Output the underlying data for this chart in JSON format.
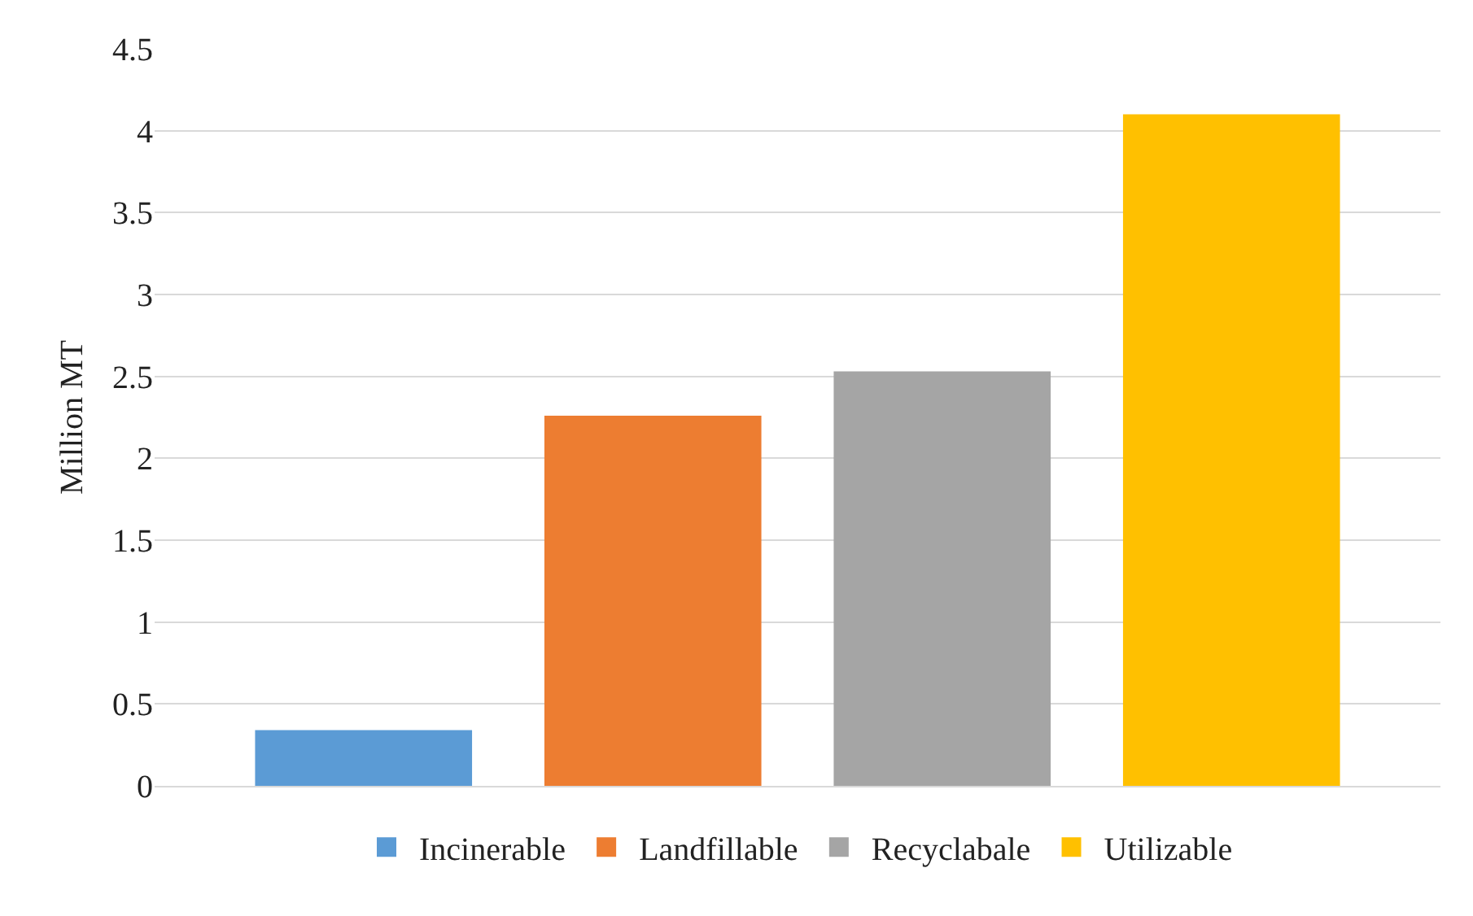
{
  "chart_data": {
    "type": "bar",
    "ylabel": "Million MT",
    "categories": [
      null
    ],
    "series": [
      {
        "name": "Incinerable",
        "color": "#5b9bd5",
        "values": [
          0.34
        ]
      },
      {
        "name": "Landfillable",
        "color": "#ed7d31",
        "values": [
          2.26
        ]
      },
      {
        "name": "Recyclabale",
        "color": "#a5a5a5",
        "values": [
          2.53
        ]
      },
      {
        "name": "Utilizable",
        "color": "#ffc000",
        "values": [
          4.1
        ]
      }
    ],
    "ylim": [
      0,
      4.5
    ],
    "yticks": [
      0,
      0.5,
      1,
      1.5,
      2,
      2.5,
      3,
      3.5,
      4,
      4.5
    ],
    "grid": "y",
    "legend": "bottom"
  }
}
